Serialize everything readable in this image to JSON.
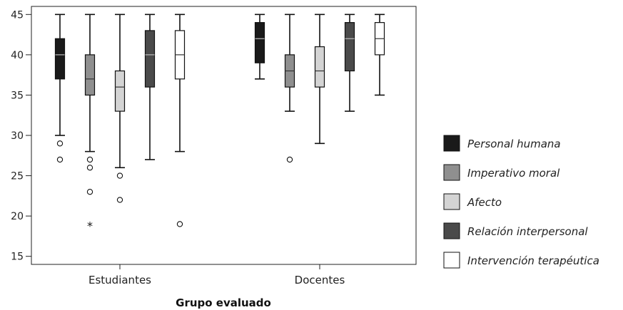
{
  "chart_data": {
    "type": "boxplot",
    "xlabel": "Grupo evaluado",
    "ylabel": "",
    "ylim": [
      14,
      46
    ],
    "yticks": [
      15,
      20,
      25,
      30,
      35,
      40,
      45
    ],
    "grid": false,
    "legend_position": "right",
    "categories": [
      "Estudiantes",
      "Docentes"
    ],
    "series": [
      {
        "name": "Personal humana",
        "color": "#1a1a1a",
        "median_color": "#bbbbbb",
        "values": [
          {
            "min": 30,
            "q1": 37,
            "median": 40,
            "q3": 42,
            "max": 45,
            "outliers": [
              29,
              27
            ],
            "extremes": []
          },
          {
            "min": 37,
            "q1": 39,
            "median": 42,
            "q3": 44,
            "max": 45,
            "outliers": [],
            "extremes": []
          }
        ]
      },
      {
        "name": "Imperativo moral",
        "color": "#8f8f8f",
        "median_color": "#333333",
        "values": [
          {
            "min": 28,
            "q1": 35,
            "median": 37,
            "q3": 40,
            "max": 45,
            "outliers": [
              27,
              26,
              23
            ],
            "extremes": [
              19
            ]
          },
          {
            "min": 33,
            "q1": 36,
            "median": 38,
            "q3": 40,
            "max": 45,
            "outliers": [
              27
            ],
            "extremes": []
          }
        ]
      },
      {
        "name": "Afecto",
        "color": "#d4d4d4",
        "median_color": "#333333",
        "values": [
          {
            "min": 26,
            "q1": 33,
            "median": 36,
            "q3": 38,
            "max": 45,
            "outliers": [
              25,
              22
            ],
            "extremes": []
          },
          {
            "min": 29,
            "q1": 36,
            "median": 38,
            "q3": 41,
            "max": 45,
            "outliers": [],
            "extremes": []
          }
        ]
      },
      {
        "name": "Relación interpersonal",
        "color": "#4a4a4a",
        "median_color": "#bbbbbb",
        "values": [
          {
            "min": 27,
            "q1": 36,
            "median": 40,
            "q3": 43,
            "max": 45,
            "outliers": [],
            "extremes": []
          },
          {
            "min": 33,
            "q1": 38,
            "median": 42,
            "q3": 44,
            "max": 45,
            "outliers": [],
            "extremes": []
          }
        ]
      },
      {
        "name": "Intervención terapéutica",
        "color": "#ffffff",
        "median_color": "#333333",
        "values": [
          {
            "min": 28,
            "q1": 37,
            "median": 40,
            "q3": 43,
            "max": 45,
            "outliers": [
              19
            ],
            "extremes": []
          },
          {
            "min": 35,
            "q1": 40,
            "median": 42,
            "q3": 44,
            "max": 45,
            "outliers": [],
            "extremes": []
          }
        ]
      }
    ]
  }
}
